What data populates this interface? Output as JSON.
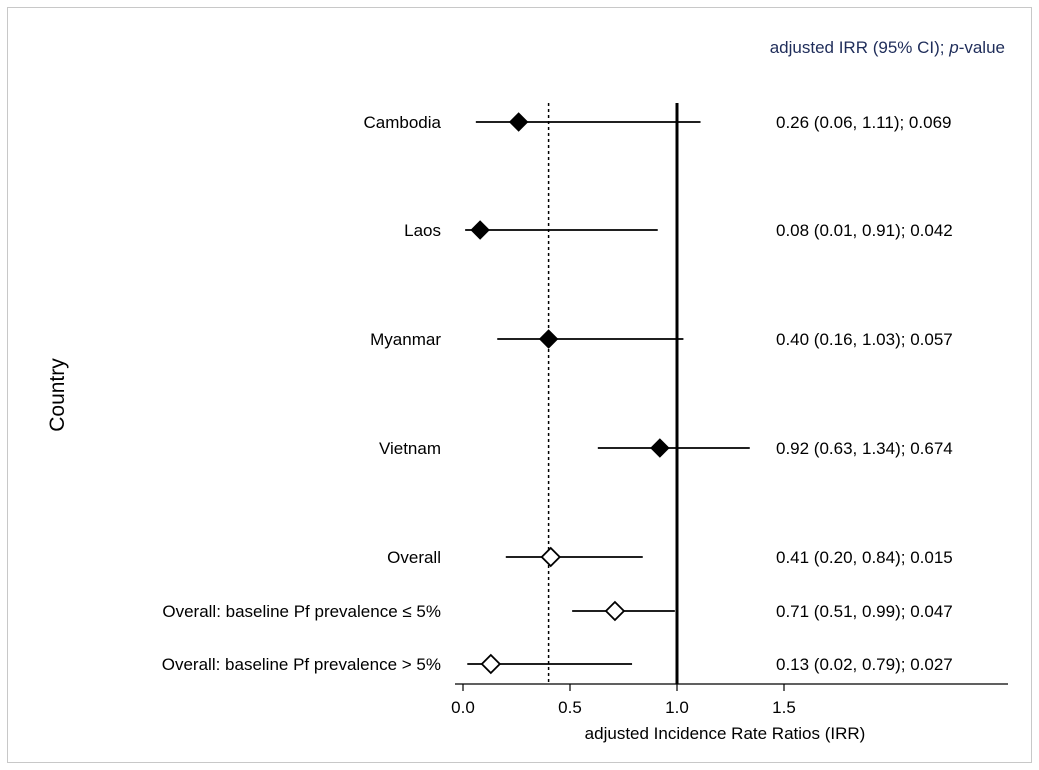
{
  "chart_data": {
    "type": "forest",
    "column_header": {
      "prefix": "adjusted IRR (95% CI); ",
      "italic": "p",
      "suffix": "-value"
    },
    "ylabel": "Country",
    "xlabel": "adjusted Incidence Rate Ratios (IRR)",
    "xlim": [
      0.0,
      1.5
    ],
    "x_ticks": [
      "0.0",
      "0.5",
      "1.0",
      "1.5"
    ],
    "reference_lines": [
      {
        "x": 1.0,
        "style": "solid"
      },
      {
        "x": 0.4,
        "style": "dotted"
      }
    ],
    "rows": [
      {
        "label": "Cambodia",
        "estimate": 0.26,
        "lower": 0.06,
        "upper": 1.11,
        "p": "0.069",
        "marker": "filled-diamond",
        "text": "0.26 (0.06, 1.11); 0.069"
      },
      {
        "label": "Laos",
        "estimate": 0.08,
        "lower": 0.01,
        "upper": 0.91,
        "p": "0.042",
        "marker": "filled-diamond",
        "text": "0.08 (0.01, 0.91); 0.042"
      },
      {
        "label": "Myanmar",
        "estimate": 0.4,
        "lower": 0.16,
        "upper": 1.03,
        "p": "0.057",
        "marker": "filled-diamond",
        "text": "0.40 (0.16, 1.03); 0.057"
      },
      {
        "label": "Vietnam",
        "estimate": 0.92,
        "lower": 0.63,
        "upper": 1.34,
        "p": "0.674",
        "marker": "filled-diamond",
        "text": "0.92 (0.63, 1.34); 0.674"
      },
      {
        "label": "Overall",
        "estimate": 0.41,
        "lower": 0.2,
        "upper": 0.84,
        "p": "0.015",
        "marker": "hollow-diamond",
        "text": "0.41 (0.20, 0.84); 0.015"
      },
      {
        "label": "Overall: baseline Pf prevalence ≤ 5%",
        "estimate": 0.71,
        "lower": 0.51,
        "upper": 0.99,
        "p": "0.047",
        "marker": "hollow-diamond",
        "text": "0.71 (0.51, 0.99); 0.047"
      },
      {
        "label": "Overall: baseline Pf prevalence > 5%",
        "estimate": 0.13,
        "lower": 0.02,
        "upper": 0.79,
        "p": "0.027",
        "marker": "hollow-diamond",
        "text": "0.13 (0.02, 0.79); 0.027"
      }
    ],
    "colors": {
      "marks": "#000000",
      "header_text": "#1f2d5a",
      "frame": "#c8c8c8"
    }
  }
}
